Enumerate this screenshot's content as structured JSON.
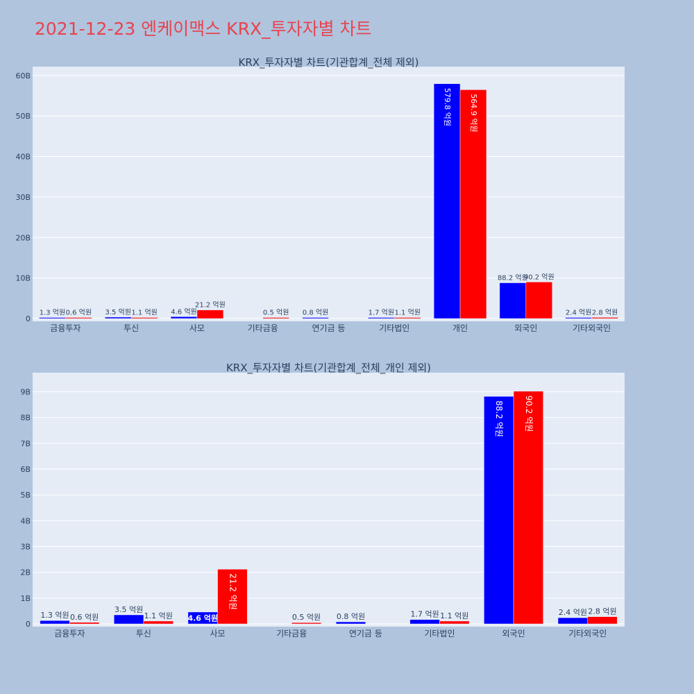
{
  "page": {
    "title": "2021-12-23 엔케이맥스 KRX_투자자별 차트"
  },
  "colors": {
    "buy": "#0000ff",
    "sell": "#ff0000",
    "plot_bg": "#e5ecf6",
    "page_bg": "#b0c4de",
    "title": "#e8434e"
  },
  "chart_data": [
    {
      "type": "bar",
      "title": "KRX_투자자별 차트(기관합계_전체 제외)",
      "categories": [
        "금융투자",
        "투신",
        "사모",
        "기타금융",
        "연기금 등",
        "기타법인",
        "개인",
        "외국인",
        "기타외국인"
      ],
      "series": [
        {
          "values": [
            0.13,
            0.35,
            0.46,
            0,
            0.08,
            0.17,
            57.98,
            8.82,
            0.24
          ],
          "labels": [
            "1.3 억원",
            "3.5 억원",
            "4.6 억원",
            "",
            "0.8 억원",
            "1.7 억원",
            "579.8 억원",
            "88.2 억원",
            "2.4 억원"
          ]
        },
        {
          "values": [
            0.06,
            0.11,
            2.12,
            0.05,
            0,
            0.11,
            56.49,
            9.02,
            0.28
          ],
          "labels": [
            "0.6 억원",
            "1.1 억원",
            "21.2 억원",
            "0.5 억원",
            "",
            "1.1 억원",
            "564.9 억원",
            "90.2 억원",
            "2.8 억원"
          ]
        }
      ],
      "y_ticks": [
        "0",
        "10B",
        "20B",
        "30B",
        "40B",
        "50B",
        "60B"
      ],
      "ylim": [
        0,
        61
      ],
      "y_unit": "B",
      "grid": true
    },
    {
      "type": "bar",
      "title": "KRX_투자자별 차트(기관합계_전체_개인 제외)",
      "categories": [
        "금융투자",
        "투신",
        "사모",
        "기타금융",
        "연기금 등",
        "기타법인",
        "외국인",
        "기타외국인"
      ],
      "series": [
        {
          "values": [
            0.13,
            0.35,
            0.46,
            0,
            0.08,
            0.17,
            8.82,
            0.24
          ],
          "labels": [
            "1.3 억원",
            "3.5 억원",
            "4.6 억원",
            "",
            "0.8 억원",
            "1.7 억원",
            "88.2 억원",
            "2.4 억원"
          ]
        },
        {
          "values": [
            0.06,
            0.11,
            2.12,
            0.05,
            0,
            0.11,
            9.02,
            0.28
          ],
          "labels": [
            "0.6 억원",
            "1.1 억원",
            "21.2 억원",
            "0.5 억원",
            "",
            "1.1 억원",
            "90.2 억원",
            "2.8 억원"
          ]
        }
      ],
      "y_ticks": [
        "0",
        "1B",
        "2B",
        "3B",
        "4B",
        "5B",
        "6B",
        "7B",
        "8B",
        "9B"
      ],
      "ylim": [
        0,
        9.55
      ],
      "y_unit": "B",
      "grid": true
    }
  ]
}
